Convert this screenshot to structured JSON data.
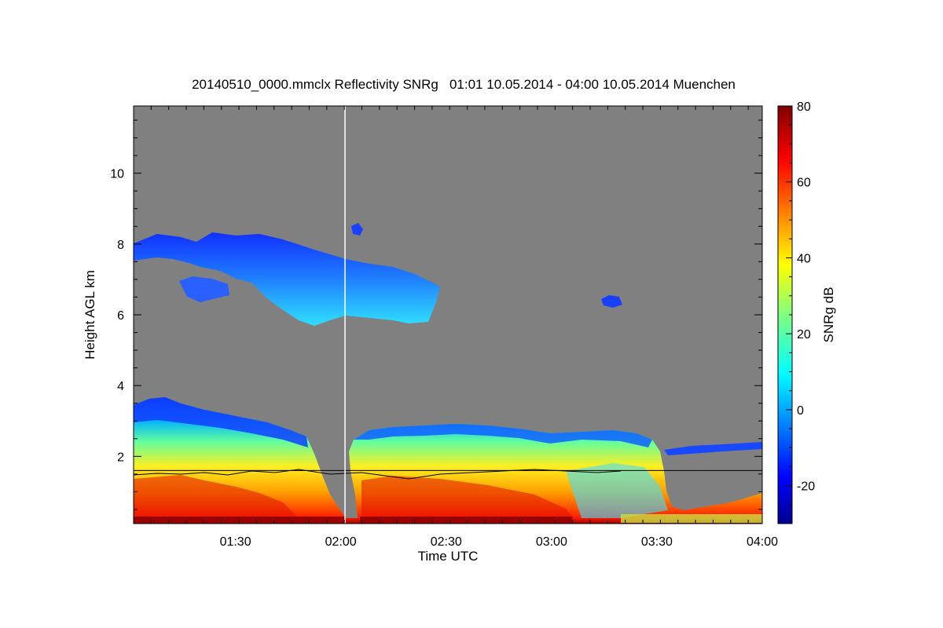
{
  "chart_data": {
    "type": "heatmap",
    "title": "20140510_0000.mmclx Reflectivity SNRg   01:01 10.05.2014 - 04:00 10.05.2014 Muenchen",
    "xlabel": "Time UTC",
    "ylabel": "Height AGL km",
    "x_ticks": [
      "01:30",
      "02:00",
      "02:30",
      "03:00",
      "03:30",
      "04:00"
    ],
    "x_tick_hours": [
      1.5,
      2.0,
      2.5,
      3.0,
      3.5,
      4.0
    ],
    "xlim_hours": [
      1.0167,
      4.0
    ],
    "y_ticks": [
      "2",
      "4",
      "6",
      "8",
      "10"
    ],
    "y_tick_values": [
      2,
      4,
      6,
      8,
      10
    ],
    "ylim_km": [
      0.1,
      11.9
    ],
    "colorbar": {
      "label": "SNRg dB",
      "ticks": [
        "-20",
        "0",
        "20",
        "40",
        "60",
        "80"
      ],
      "tick_values": [
        -20,
        0,
        20,
        40,
        60,
        80
      ],
      "range": [
        -30,
        80
      ]
    },
    "background_color": "#808080",
    "reference_line_km": 1.6,
    "vertical_marker_hour": 2.02,
    "features": [
      {
        "name": "upper cloud layer",
        "time_start": "01:01",
        "time_end": "02:30",
        "base_km": 5.8,
        "top_km": 8.6,
        "snr_db": [
          -20,
          10
        ]
      },
      {
        "name": "lower cloud and precipitation",
        "time_start": "01:01",
        "time_end": "03:45",
        "base_km": 0.2,
        "top_km": 3.7,
        "snr_db": [
          -10,
          80
        ]
      },
      {
        "name": "small patch",
        "time_start": "03:15",
        "time_end": "03:18",
        "base_km": 6.3,
        "top_km": 6.5,
        "snr_db": [
          -15,
          -5
        ]
      },
      {
        "name": "thin layer",
        "time_start": "03:35",
        "time_end": "04:00",
        "base_km": 2.2,
        "top_km": 2.4,
        "snr_db": [
          -15,
          0
        ]
      }
    ]
  }
}
